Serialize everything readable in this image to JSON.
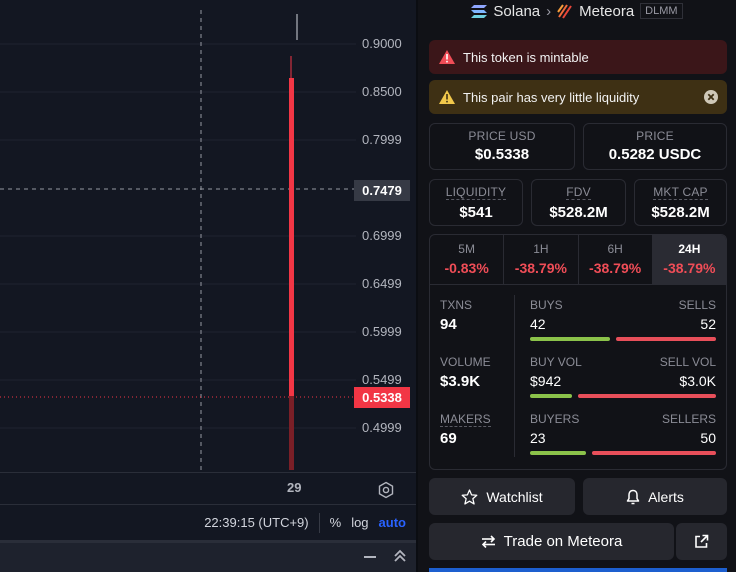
{
  "chart": {
    "price_ticks": [
      "0.9000",
      "0.8500",
      "0.7999",
      "0.6999",
      "0.6499",
      "0.5999",
      "0.5499",
      "0.4999"
    ],
    "crosshair_price": "0.7479",
    "last_price": "0.5338",
    "time_label": "29",
    "clock": "22:39:15 (UTC+9)",
    "pct_label": "%",
    "log_label": "log",
    "auto_label": "auto",
    "colors": {
      "candle_down": "#f23645",
      "last_price_line": "#f23645"
    }
  },
  "header": {
    "chain": "Solana",
    "dex": "Meteora",
    "pool_type": "DLMM"
  },
  "alerts": {
    "mintable": "This token is mintable",
    "liquidity": "This pair has very little liquidity"
  },
  "prices": {
    "usd_label": "PRICE USD",
    "usd_value": "$0.5338",
    "quote_label": "PRICE",
    "quote_value": "0.5282 USDC"
  },
  "metrics": {
    "liquidity_label": "LIQUIDITY",
    "liquidity_value": "$541",
    "fdv_label": "FDV",
    "fdv_value": "$528.2M",
    "mcap_label": "MKT CAP",
    "mcap_value": "$528.2M"
  },
  "periods": [
    {
      "label": "5M",
      "change": "-0.83%"
    },
    {
      "label": "1H",
      "change": "-38.79%"
    },
    {
      "label": "6H",
      "change": "-38.79%"
    },
    {
      "label": "24H",
      "change": "-38.79%"
    }
  ],
  "activity": {
    "txns_label": "TXNS",
    "txns_value": "94",
    "volume_label": "VOLUME",
    "volume_value": "$3.9K",
    "makers_label": "MAKERS",
    "makers_value": "69",
    "buys_label": "BUYS",
    "buys_value": "42",
    "sells_label": "SELLS",
    "sells_value": "52",
    "buy_vol_label": "BUY VOL",
    "buy_vol_value": "$942",
    "sell_vol_label": "SELL VOL",
    "sell_vol_value": "$3.0K",
    "buyers_label": "BUYERS",
    "buyers_value": "23",
    "sellers_label": "SELLERS",
    "sellers_value": "50",
    "ratios": {
      "buys": 0.447,
      "buy_vol": 0.24,
      "buyers": 0.315
    },
    "colors": {
      "buy": "#8bc24a",
      "sell": "#e84f5a"
    }
  },
  "actions": {
    "watchlist": "Watchlist",
    "alerts": "Alerts",
    "trade": "Trade on Meteora"
  }
}
